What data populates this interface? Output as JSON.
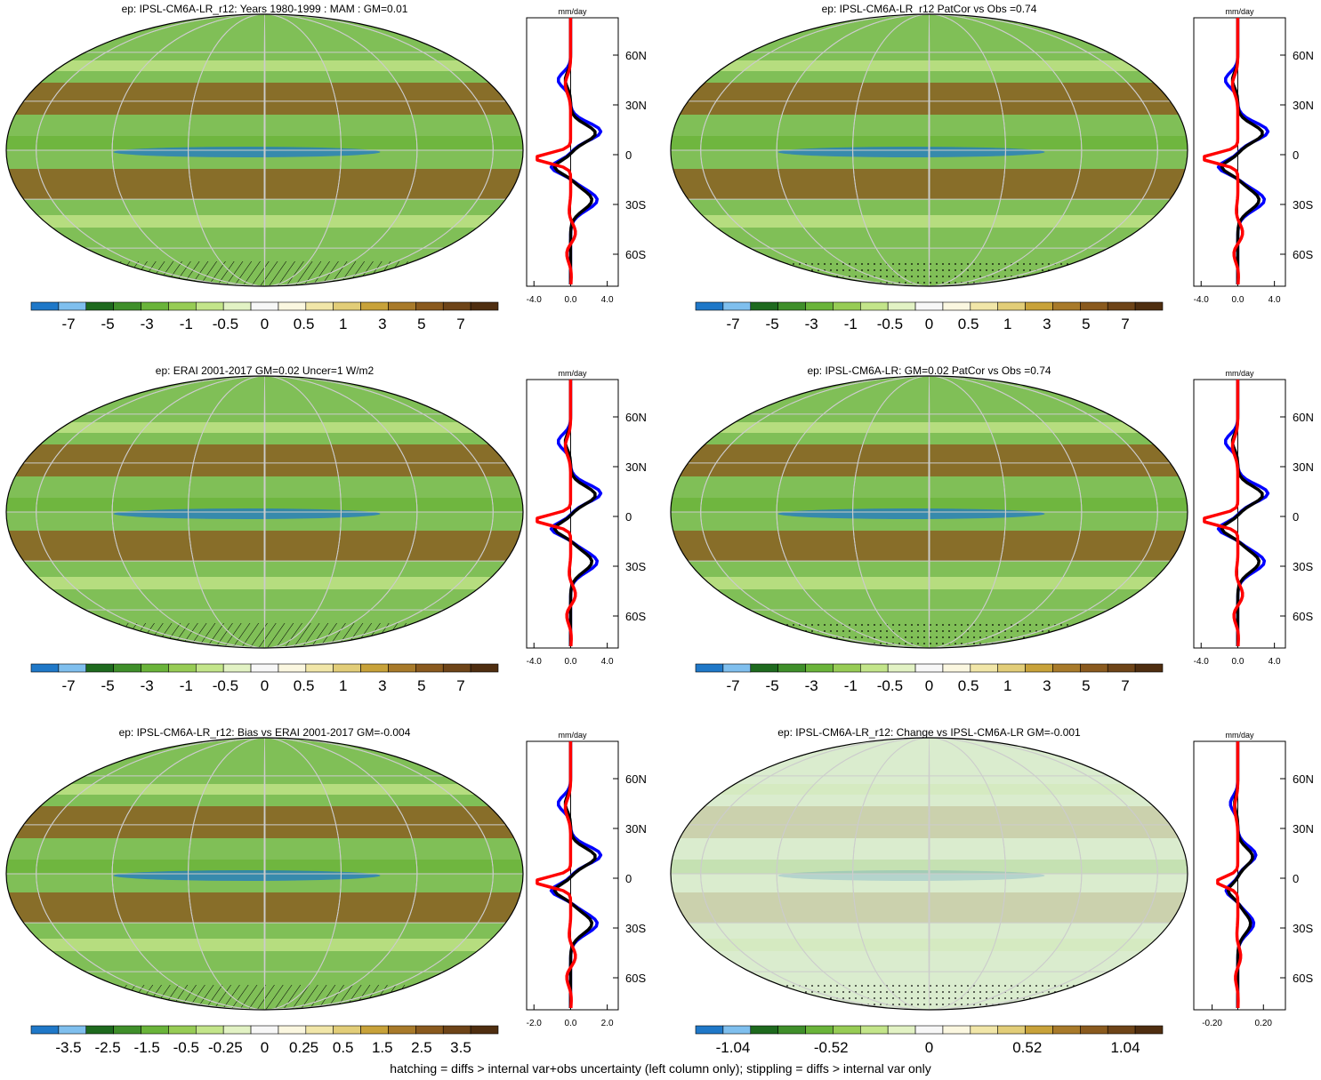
{
  "panels": [
    {
      "title": "ep: IPSL-CM6A-LR_r12: Years 1980-1999 : MAM : GM=0.01",
      "colorbar_labels": [
        "-7",
        "-5",
        "-3",
        "-1",
        "-0.5",
        "0",
        "0.5",
        "1",
        "3",
        "5",
        "7"
      ],
      "profile_xticks": [
        "-4.0",
        "0.0",
        "4.0"
      ],
      "hatch": "hatched"
    },
    {
      "title": "ep: IPSL-CM6A-LR_r12 PatCor vs Obs =0.74",
      "colorbar_labels": [
        "-7",
        "-5",
        "-3",
        "-1",
        "-0.5",
        "0",
        "0.5",
        "1",
        "3",
        "5",
        "7"
      ],
      "profile_xticks": [
        "-4.0",
        "0.0",
        "4.0"
      ],
      "hatch": "stippled"
    },
    {
      "title": "ep: ERAI 2001-2017 GM=0.02 Uncer=1 W/m2",
      "colorbar_labels": [
        "-7",
        "-5",
        "-3",
        "-1",
        "-0.5",
        "0",
        "0.5",
        "1",
        "3",
        "5",
        "7"
      ],
      "profile_xticks": [
        "-4.0",
        "0.0",
        "4.0"
      ],
      "hatch": "hatched"
    },
    {
      "title": "ep: IPSL-CM6A-LR: GM=0.02 PatCor vs Obs =0.74",
      "colorbar_labels": [
        "-7",
        "-5",
        "-3",
        "-1",
        "-0.5",
        "0",
        "0.5",
        "1",
        "3",
        "5",
        "7"
      ],
      "profile_xticks": [
        "-4.0",
        "0.0",
        "4.0"
      ],
      "hatch": "stippled"
    },
    {
      "title": "ep: IPSL-CM6A-LR_r12: Bias vs ERAI 2001-2017 GM=-0.004",
      "colorbar_labels": [
        "-3.5",
        "-2.5",
        "-1.5",
        "-0.5",
        "-0.25",
        "0",
        "0.25",
        "0.5",
        "1.5",
        "2.5",
        "3.5"
      ],
      "profile_xticks": [
        "-2.0",
        "0.0",
        "2.0"
      ],
      "hatch": "hatched"
    },
    {
      "title": "ep: IPSL-CM6A-LR_r12: Change vs IPSL-CM6A-LR GM=-0.001",
      "colorbar_labels": [
        "-1.04",
        "-0.52",
        "0",
        "0.52",
        "1.04"
      ],
      "profile_xticks": [
        "-0.20",
        "0.20"
      ],
      "hatch": "stippled"
    }
  ],
  "profile_unit": "mm/day",
  "latitude_labels": [
    "60N",
    "30N",
    "0",
    "30S",
    "60S"
  ],
  "colorbar_colors": [
    "#1f78c8",
    "#7fbfee",
    "#1e6a1e",
    "#3f8f2a",
    "#6ab43a",
    "#97cc55",
    "#c3e58a",
    "#e2f2c4",
    "#f7f7f7",
    "#fbf7e0",
    "#f1e6a8",
    "#e2cd78",
    "#c8a23a",
    "#a87a2a",
    "#8a5a1e",
    "#6e4418",
    "#4f2e10"
  ],
  "colors": {
    "wet": "#6ab43a",
    "dry": "#8a5a1e",
    "profile_model": "#0000ff",
    "profile_obs": "#000000",
    "profile_diff": "#ff0000"
  },
  "footer": "hatching = diffs > internal var+obs uncertainty (left column only); stippling = diffs > internal var only"
}
